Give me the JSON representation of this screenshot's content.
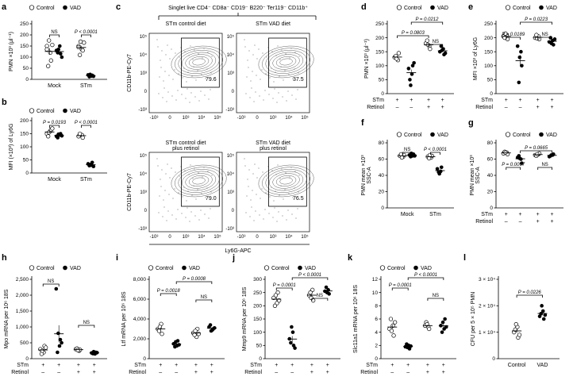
{
  "legend": {
    "control": "Control",
    "vad": "VAD"
  },
  "panel_letters": {
    "a": "a",
    "b": "b",
    "c": "c",
    "d": "d",
    "e": "e",
    "f": "f",
    "g": "g",
    "h": "h",
    "i": "i",
    "j": "j",
    "k": "k",
    "l": "l"
  },
  "axes": {
    "a_y": "PMN ×10³ (μl⁻¹)",
    "b_y": "MFI (×10³) of Ly6G",
    "d_y": "PMN ×10³ (μl⁻¹)",
    "e_y": "MFI ×10³ of Ly6G",
    "f_y1": "PMN mean ×10³",
    "f_y2": "SSC-A",
    "g_y1": "PMN mean ×10³",
    "g_y2": "SSC-A",
    "h_y": "Mpo mRNA per 10⁶ 18S",
    "i_y": "Ltf mRNA per 10⁶ 18S",
    "j_y": "Mmp9 mRNA per 10⁶ 18S",
    "k_y": "Slc11a1 mRNA per 10⁶ 18S",
    "l_y": "CFU per 5 × 10⁵ PMN",
    "c_y": "CD11b-PE-Cy7",
    "c_x": "Ly6G-APC"
  },
  "groups": {
    "mock": "Mock",
    "stm": "STm",
    "stm_row": "STm",
    "retinol_row": "Retinol",
    "control": "Control",
    "vad": "VAD"
  },
  "signs": {
    "plus": "+",
    "minus": "–"
  },
  "pvalues": {
    "ns": "NS",
    "a": "P < 0.0001",
    "b1": "P = 0.0193",
    "b2": "P < 0.0001",
    "d1": "P = 0.0803",
    "d2": "P = 0.0212",
    "e1": "P = 0.0189",
    "e2": "P = 0.0223",
    "f": "P < 0.0001",
    "g1": "P = 0.0067",
    "g2": "P = 0.0665",
    "i1": "P = 0.0018",
    "i2": "P = 0.0008",
    "j1": "P = 0.0001",
    "j2": "P < 0.0001",
    "k1": "P = 0.0001",
    "k2": "P < 0.0001",
    "l": "P = 0.0226"
  },
  "flow": {
    "header": "Singlet live CD4⁻ CD8a⁻ CD19⁻ B220⁻ Ter119⁻ CD11b⁺",
    "plots": [
      {
        "title": "STm control diet",
        "title2": "",
        "gate_pct": "79.6"
      },
      {
        "title": "STm VAD diet",
        "title2": "",
        "gate_pct": "37.5"
      },
      {
        "title": "STm control diet",
        "title2": "plus retinol",
        "gate_pct": "79.0"
      },
      {
        "title": "STm VAD diet",
        "title2": "plus retinol",
        "gate_pct": "76.5"
      }
    ],
    "yticks": [
      "10⁵",
      "10⁴",
      "10³",
      "0",
      "-10³"
    ],
    "xticks": [
      "-10³",
      "0",
      "10³",
      "10⁴",
      "10⁵"
    ]
  },
  "ticks": {
    "a": [
      "0",
      "50",
      "100",
      "150",
      "200",
      "250"
    ],
    "b": [
      "0",
      "50",
      "100",
      "150",
      "200"
    ],
    "d": [
      "0",
      "50",
      "100",
      "150",
      "200",
      "250"
    ],
    "e": [
      "0",
      "50",
      "100",
      "150",
      "200",
      "250"
    ],
    "f": [
      "0",
      "20",
      "40",
      "60",
      "80"
    ],
    "g": [
      "0",
      "20",
      "40",
      "60",
      "80"
    ],
    "h": [
      "0",
      "500",
      "1,000",
      "1,500",
      "2,000",
      "2,500"
    ],
    "i": [
      "0",
      "2,000",
      "4,000",
      "6,000",
      "8,000"
    ],
    "j": [
      "0",
      "50",
      "100",
      "150",
      "200",
      "250",
      "300"
    ],
    "k": [
      "0",
      "2",
      "4",
      "6",
      "8",
      "10",
      "12"
    ],
    "l": [
      "0",
      "1 × 10⁴",
      "2 × 10⁴",
      "3 × 10⁴"
    ]
  },
  "chart_data": [
    {
      "panel": "a",
      "type": "scatter",
      "ylim": [
        0,
        250
      ],
      "categories": [
        "Mock",
        "STm"
      ],
      "series": [
        {
          "name": "Control",
          "values": [
            [
              150,
              120,
              85,
              60,
              175,
              155,
              135
            ],
            [
              150,
              135,
              130,
              110,
              170,
              165,
              145
            ]
          ]
        },
        {
          "name": "VAD",
          "values": [
            [
              130,
              150,
              115,
              120,
              135,
              100
            ],
            [
              20,
              15,
              18,
              12,
              22,
              14
            ]
          ]
        }
      ]
    },
    {
      "panel": "b",
      "type": "scatter",
      "ylim": [
        0,
        200
      ],
      "categories": [
        "Mock",
        "STm"
      ],
      "series": [
        {
          "name": "Control",
          "values": [
            [
              150,
              160,
              165,
              140,
              155,
              170
            ],
            [
              140,
              145,
              135,
              150
            ]
          ]
        },
        {
          "name": "VAD",
          "values": [
            [
              140,
              145,
              150,
              135,
              148,
              142
            ],
            [
              35,
              30,
              40,
              28,
              32,
              25
            ]
          ]
        }
      ]
    },
    {
      "panel": "d",
      "type": "scatter",
      "ylim": [
        0,
        250
      ],
      "series": [
        {
          "name": "Control",
          "values": [
            [
              130,
              120,
              145,
              135,
              125
            ],
            [
              180,
              170,
              160,
              190,
              175
            ]
          ]
        },
        {
          "name": "VAD",
          "values": [
            [
              90,
              70,
              100,
              50,
              30,
              110
            ],
            [
              150,
              160,
              140,
              170,
              155,
              145
            ]
          ]
        }
      ]
    },
    {
      "panel": "e",
      "type": "scatter",
      "ylim": [
        0,
        250
      ],
      "series": [
        {
          "name": "Control",
          "values": [
            [
              205,
              210,
              195,
              200,
              215
            ],
            [
              200,
              205,
              195,
              210,
              198
            ]
          ]
        },
        {
          "name": "VAD",
          "values": [
            [
              170,
              150,
              100,
              40,
              130
            ],
            [
              185,
              190,
              175,
              200,
              180,
              195
            ]
          ]
        }
      ]
    },
    {
      "panel": "f",
      "type": "scatter",
      "ylim": [
        0,
        80
      ],
      "categories": [
        "Mock",
        "STm"
      ],
      "series": [
        {
          "name": "Control",
          "values": [
            [
              64,
              63,
              65,
              66,
              62
            ],
            [
              63,
              62,
              64,
              61,
              65
            ]
          ]
        },
        {
          "name": "VAD",
          "values": [
            [
              65,
              64,
              66,
              63,
              67,
              64
            ],
            [
              48,
              45,
              50,
              44,
              42
            ]
          ]
        }
      ]
    },
    {
      "panel": "g",
      "type": "scatter",
      "ylim": [
        0,
        80
      ],
      "series": [
        {
          "name": "Control",
          "values": [
            [
              67,
              68,
              66,
              69,
              68
            ],
            [
              65,
              66,
              67,
              64,
              66
            ]
          ]
        },
        {
          "name": "VAD",
          "values": [
            [
              62,
              60,
              55,
              64,
              61
            ],
            [
              63,
              65,
              66,
              64,
              65
            ]
          ]
        }
      ]
    },
    {
      "panel": "h",
      "type": "scatter",
      "ylim": [
        0,
        2500
      ],
      "series": [
        {
          "name": "Control",
          "values": [
            [
              300,
              200,
              400,
              150,
              250,
              350
            ],
            [
              300,
              250,
              280,
              320,
              270
            ]
          ]
        },
        {
          "name": "VAD",
          "values": [
            [
              2200,
              400,
              600,
              200,
              800,
              500
            ],
            [
              180,
              150,
              200,
              160,
              220,
              190
            ]
          ]
        }
      ]
    },
    {
      "panel": "i",
      "type": "scatter",
      "ylim": [
        0,
        8000
      ],
      "series": [
        {
          "name": "Control",
          "values": [
            [
              3000,
              3500,
              2500,
              2800,
              3200
            ],
            [
              2600,
              2200,
              3000,
              2400,
              2800,
              2500
            ]
          ]
        },
        {
          "name": "VAD",
          "values": [
            [
              1500,
              1300,
              1800,
              1200,
              1700,
              1400
            ],
            [
              3200,
              2900,
              3000,
              3400,
              2800,
              3100
            ]
          ]
        }
      ]
    },
    {
      "panel": "j",
      "type": "scatter",
      "ylim": [
        0,
        300
      ],
      "series": [
        {
          "name": "Control",
          "values": [
            [
              230,
              210,
              250,
              200,
              240,
              220
            ],
            [
              240,
              260,
              220,
              250,
              230
            ]
          ]
        },
        {
          "name": "VAD",
          "values": [
            [
              75,
              100,
              50,
              60,
              120,
              40
            ],
            [
              255,
              260,
              245,
              270,
              250
            ]
          ]
        }
      ]
    },
    {
      "panel": "k",
      "type": "scatter",
      "ylim": [
        0,
        12
      ],
      "series": [
        {
          "name": "Control",
          "values": [
            [
              4.5,
              5.0,
              3.5,
              6.0,
              4.2,
              5.5
            ],
            [
              5.0,
              4.8,
              4.5,
              5.5,
              5.2
            ]
          ]
        },
        {
          "name": "VAD",
          "values": [
            [
              1.8,
              2.0,
              1.5,
              2.2,
              1.7,
              1.9
            ],
            [
              5.0,
              4.5,
              6.0,
              4.0,
              5.5,
              4.8
            ]
          ]
        }
      ]
    },
    {
      "panel": "l",
      "type": "scatter",
      "ylim": [
        0,
        30000
      ],
      "categories": [
        "Control",
        "VAD"
      ],
      "series": [
        {
          "name": "Control",
          "values": [
            [
              10000,
              12000,
              8000,
              11000,
              13000,
              9000
            ]
          ]
        },
        {
          "name": "VAD",
          "values": [
            [
              16000,
              18000,
              15000,
              17000,
              20000,
              16500
            ]
          ]
        }
      ]
    }
  ]
}
